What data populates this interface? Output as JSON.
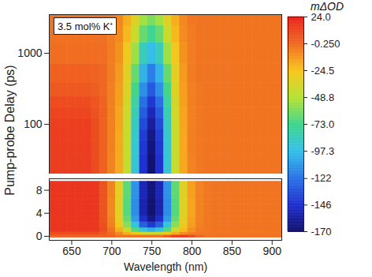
{
  "chart_data": {
    "type": "heatmap",
    "x_label": "Wavelength (nm)",
    "y_label": "Pump-probe Delay (ps)",
    "annotation": "3.5 mol% K⁺",
    "x": [
      620,
      630,
      640,
      650,
      660,
      670,
      680,
      690,
      700,
      710,
      720,
      730,
      740,
      750,
      760,
      770,
      780,
      790,
      800,
      810,
      820,
      830,
      840,
      850,
      860,
      870,
      880,
      890,
      900,
      910
    ],
    "xlim": [
      622,
      912
    ],
    "xticks": [
      650,
      700,
      750,
      800,
      850,
      900
    ],
    "panels": [
      {
        "y": [
          20,
          30,
          50,
          70,
          100,
          150,
          200,
          300,
          500,
          1000,
          2000,
          3000
        ],
        "ylim": [
          20,
          3500
        ],
        "yticks": [
          100,
          1000
        ],
        "log": "y",
        "cells": [
          [
            15,
            15,
            15,
            15,
            15,
            15,
            10,
            3,
            -7,
            -17,
            -44,
            -92,
            -145,
            -168,
            -145,
            -92,
            -44,
            -17,
            -7,
            -4,
            -3,
            -3,
            -3,
            -3,
            -3,
            -3,
            -3,
            -3,
            -3,
            -3
          ],
          [
            15,
            15,
            15,
            15,
            15,
            15,
            10,
            3,
            -7,
            -17,
            -44,
            -92,
            -145,
            -168,
            -145,
            -92,
            -44,
            -17,
            -7,
            -4,
            -3,
            -3,
            -3,
            -3,
            -3,
            -3,
            -3,
            -3,
            -3,
            -3
          ],
          [
            15,
            15,
            15,
            15,
            15,
            15,
            10,
            3,
            -6,
            -17,
            -44,
            -91,
            -143,
            -166,
            -143,
            -91,
            -44,
            -17,
            -6,
            -4,
            -3,
            -3,
            -3,
            -3,
            -3,
            -3,
            -3,
            -3,
            -3,
            -3
          ],
          [
            15,
            15,
            15,
            15,
            15,
            15,
            10,
            3,
            -6,
            -17,
            -43,
            -89,
            -141,
            -163,
            -141,
            -89,
            -43,
            -17,
            -6,
            -4,
            -3,
            -3,
            -3,
            -3,
            -3,
            -3,
            -3,
            -3,
            -3,
            -3
          ],
          [
            14,
            14,
            14,
            14,
            14,
            14,
            10,
            3,
            -6,
            -16,
            -42,
            -87,
            -136,
            -158,
            -136,
            -87,
            -42,
            -16,
            -6,
            -4,
            -3,
            -3,
            -3,
            -3,
            -3,
            -3,
            -3,
            -3,
            -3,
            -3
          ],
          [
            12,
            12,
            12,
            12,
            12,
            12,
            8,
            3,
            -6,
            -16,
            -40,
            -83,
            -130,
            -151,
            -130,
            -83,
            -40,
            -16,
            -6,
            -4,
            -3,
            -3,
            -3,
            -3,
            -3,
            -3,
            -3,
            -3,
            -3,
            -3
          ],
          [
            10,
            10,
            10,
            10,
            10,
            10,
            7,
            2,
            -6,
            -15,
            -38,
            -79,
            -123,
            -143,
            -123,
            -79,
            -38,
            -15,
            -6,
            -4,
            -3,
            -3,
            -3,
            -3,
            -3,
            -3,
            -3,
            -3,
            -3,
            -3
          ],
          [
            6,
            6,
            6,
            6,
            6,
            6,
            4,
            1,
            -6,
            -14,
            -35,
            -72,
            -113,
            -131,
            -113,
            -72,
            -35,
            -14,
            -6,
            -4,
            -3,
            -3,
            -3,
            -3,
            -3,
            -3,
            -3,
            -3,
            -3,
            -3
          ],
          [
            3,
            3,
            3,
            3,
            3,
            3,
            2,
            1,
            -5,
            -13,
            -32,
            -65,
            -102,
            -118,
            -102,
            -65,
            -32,
            -13,
            -5,
            -3,
            -3,
            -3,
            -3,
            -3,
            -3,
            -3,
            -3,
            -3,
            -3,
            -3
          ],
          [
            -1,
            -1,
            -1,
            -1,
            -1,
            -1,
            -1,
            -1,
            -5,
            -11,
            -27,
            -54,
            -85,
            -98,
            -85,
            -54,
            -27,
            -11,
            -5,
            -3,
            -3,
            -3,
            -3,
            -3,
            -3,
            -3,
            -3,
            -3,
            -3,
            -3
          ],
          [
            -2,
            -2,
            -2,
            -2,
            -2,
            -2,
            -2,
            -2,
            -5,
            -9,
            -21,
            -42,
            -65,
            -75,
            -65,
            -42,
            -21,
            -9,
            -5,
            -3,
            -3,
            -3,
            -3,
            -3,
            -3,
            -3,
            -3,
            -3,
            -3,
            -3
          ],
          [
            -2,
            -2,
            -2,
            -2,
            -2,
            -2,
            -2,
            -2,
            -4,
            -8,
            -18,
            -34,
            -53,
            -61,
            -53,
            -34,
            -18,
            -8,
            -4,
            -3,
            -3,
            -3,
            -3,
            -3,
            -3,
            -3,
            -3,
            -3,
            -3,
            -3
          ]
        ]
      },
      {
        "y": [
          0,
          0.5,
          1,
          2,
          3,
          4,
          5,
          6,
          7,
          8,
          9
        ],
        "ylim": [
          -0.7,
          10
        ],
        "yticks": [
          0,
          4,
          8
        ],
        "cells": [
          [
            3,
            3,
            3,
            3,
            3,
            3,
            3,
            3,
            3,
            -2,
            -2,
            -2,
            -2,
            -2,
            -2,
            5,
            15,
            15,
            10,
            2,
            -2,
            -2,
            -2,
            -2,
            -2,
            -2,
            -2,
            -2,
            -2,
            -2
          ],
          [
            10,
            10,
            10,
            10,
            10,
            10,
            10,
            6,
            0,
            -8,
            -19,
            -29,
            -39,
            -43,
            -39,
            -29,
            -19,
            -11,
            -6,
            -4,
            -3,
            -3,
            -3,
            -3,
            -3,
            -3,
            -3,
            -3,
            -3,
            -3
          ],
          [
            18,
            18,
            18,
            18,
            18,
            18,
            17,
            10,
            -3,
            -19,
            -42,
            -69,
            -93,
            -103,
            -93,
            -69,
            -42,
            -22,
            -11,
            -5,
            -4,
            -3,
            -3,
            -3,
            -3,
            -3,
            -3,
            -3,
            -3,
            -3
          ],
          [
            18,
            18,
            18,
            18,
            18,
            18,
            17,
            9,
            -6,
            -27,
            -58,
            -95,
            -129,
            -143,
            -129,
            -95,
            -58,
            -30,
            -14,
            -6,
            -4,
            -3,
            -3,
            -3,
            -3,
            -3,
            -3,
            -3,
            -3,
            -3
          ],
          [
            18,
            18,
            18,
            18,
            18,
            18,
            17,
            8,
            -7,
            -30,
            -65,
            -109,
            -147,
            -163,
            -147,
            -109,
            -65,
            -33,
            -15,
            -7,
            -4,
            -3,
            -3,
            -3,
            -3,
            -3,
            -3,
            -3,
            -3,
            -3
          ],
          [
            18,
            18,
            18,
            18,
            18,
            18,
            17,
            8,
            -8,
            -32,
            -69,
            -114,
            -154,
            -168,
            -154,
            -114,
            -69,
            -35,
            -16,
            -7,
            -4,
            -3,
            -3,
            -3,
            -3,
            -3,
            -3,
            -3,
            -3,
            -3
          ],
          [
            18,
            18,
            18,
            18,
            18,
            18,
            17,
            8,
            -8,
            -32,
            -69,
            -114,
            -154,
            -168,
            -154,
            -114,
            -69,
            -35,
            -16,
            -7,
            -4,
            -3,
            -3,
            -3,
            -3,
            -3,
            -3,
            -3,
            -3,
            -3
          ],
          [
            18,
            18,
            18,
            18,
            18,
            18,
            17,
            8,
            -8,
            -32,
            -69,
            -114,
            -154,
            -168,
            -154,
            -114,
            -69,
            -35,
            -16,
            -7,
            -4,
            -3,
            -3,
            -3,
            -3,
            -3,
            -3,
            -3,
            -3,
            -3
          ],
          [
            18,
            18,
            18,
            18,
            18,
            18,
            17,
            8,
            -7,
            -31,
            -67,
            -112,
            -152,
            -166,
            -152,
            -112,
            -67,
            -34,
            -15,
            -7,
            -4,
            -3,
            -3,
            -3,
            -3,
            -3,
            -3,
            -3,
            -3,
            -3
          ],
          [
            18,
            18,
            18,
            18,
            18,
            18,
            17,
            8,
            -7,
            -31,
            -67,
            -112,
            -152,
            -166,
            -152,
            -112,
            -67,
            -34,
            -15,
            -7,
            -4,
            -3,
            -3,
            -3,
            -3,
            -3,
            -3,
            -3,
            -3,
            -3
          ],
          [
            18,
            18,
            18,
            18,
            18,
            18,
            17,
            8,
            -7,
            -31,
            -67,
            -112,
            -152,
            -166,
            -152,
            -112,
            -67,
            -34,
            -15,
            -7,
            -4,
            -3,
            -3,
            -3,
            -3,
            -3,
            -3,
            -3,
            -3,
            -3
          ]
        ]
      }
    ],
    "colorbar": {
      "title": "mΔOD",
      "range": [
        -170,
        24
      ],
      "ticks": [
        {
          "value": 24,
          "label": "24.0"
        },
        {
          "value": -0.25,
          "label": "-0.250"
        },
        -24.5,
        -48.8,
        {
          "value": -73,
          "label": "-73.0"
        },
        -97.3,
        -122,
        -146,
        -170
      ]
    }
  }
}
